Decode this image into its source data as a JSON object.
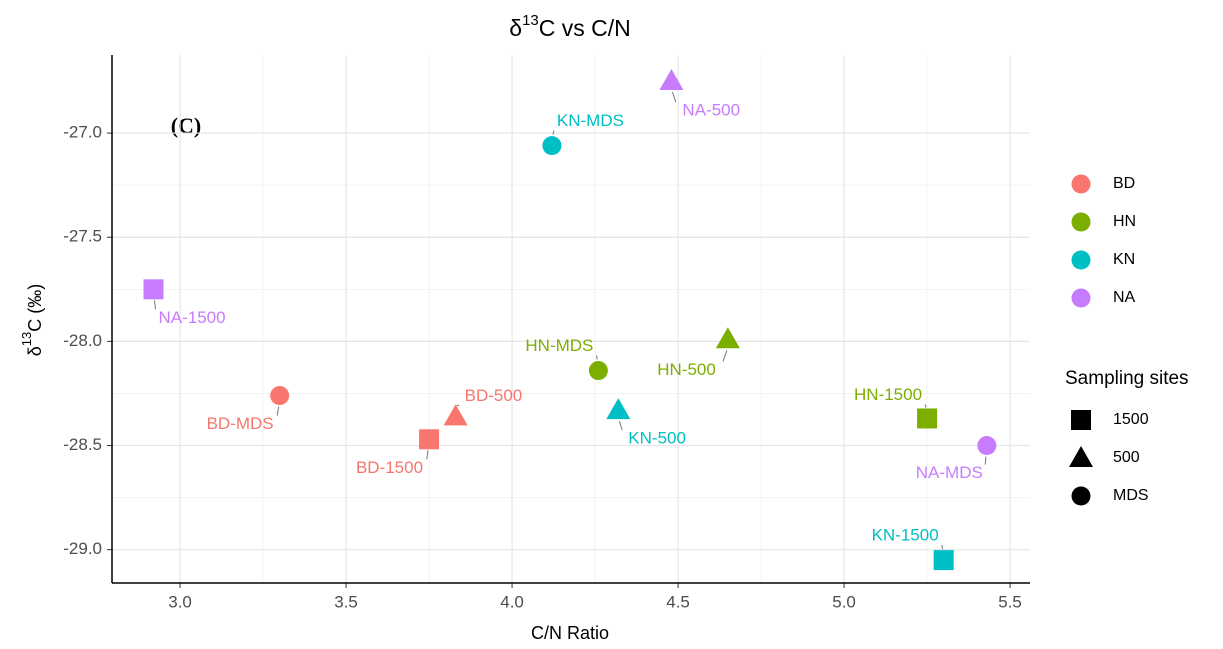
{
  "chart_data": {
    "type": "scatter",
    "title": {
      "prefix": "δ",
      "superscript": "13",
      "suffix": "C vs C/N"
    },
    "annotation": "(C)",
    "x_label": "C/N Ratio",
    "y_label": {
      "prefix": "δ",
      "superscript": "13",
      "suffix": "C (‰)"
    },
    "xlim": [
      2.795,
      5.56
    ],
    "ylim": [
      -29.16,
      -26.625
    ],
    "xticks": [
      {
        "value": 3,
        "label": "3.0"
      },
      3.5,
      {
        "value": 4,
        "label": "4.0"
      },
      4.5,
      {
        "value": 5,
        "label": "5.0"
      },
      5.5
    ],
    "yticks": [
      {
        "value": -29,
        "label": "-29.0"
      },
      -28.5,
      {
        "value": -28,
        "label": "-28.0"
      },
      -27.5,
      {
        "value": -27,
        "label": "-27.0"
      }
    ],
    "grid": true,
    "series": [
      {
        "name": "BD",
        "color": "#F8766D",
        "x": [
          3.3,
          3.83,
          3.75
        ],
        "y": [
          -28.26,
          -28.36,
          -28.47
        ],
        "labels": [
          "BD-MDS",
          "BD-500",
          "BD-1500"
        ],
        "markers": [
          "circle",
          "triangle",
          "square"
        ]
      },
      {
        "name": "HN",
        "color": "#7CAE00",
        "x": [
          4.26,
          4.65,
          5.25
        ],
        "y": [
          -28.14,
          -27.99,
          -28.37
        ],
        "labels": [
          "HN-MDS",
          "HN-500",
          "HN-1500"
        ],
        "markers": [
          "circle",
          "triangle",
          "square"
        ]
      },
      {
        "name": "KN",
        "color": "#00BFC4",
        "x": [
          4.12,
          4.32,
          5.3
        ],
        "y": [
          -27.06,
          -28.33,
          -29.05
        ],
        "labels": [
          "KN-MDS",
          "KN-500",
          "KN-1500"
        ],
        "markers": [
          "circle",
          "triangle",
          "square"
        ]
      },
      {
        "name": "NA",
        "color": "#C77CFF",
        "x": [
          5.43,
          4.48,
          2.92
        ],
        "y": [
          -28.5,
          -26.75,
          -27.75
        ],
        "labels": [
          "NA-MDS",
          "NA-500",
          "NA-1500"
        ],
        "markers": [
          "circle",
          "triangle",
          "square"
        ]
      }
    ],
    "shape_legend": {
      "title": "Sampling sites",
      "items": [
        {
          "name": "1500",
          "marker": "square"
        },
        {
          "name": "500",
          "marker": "triangle"
        },
        {
          "name": "MDS",
          "marker": "circle"
        }
      ]
    }
  }
}
